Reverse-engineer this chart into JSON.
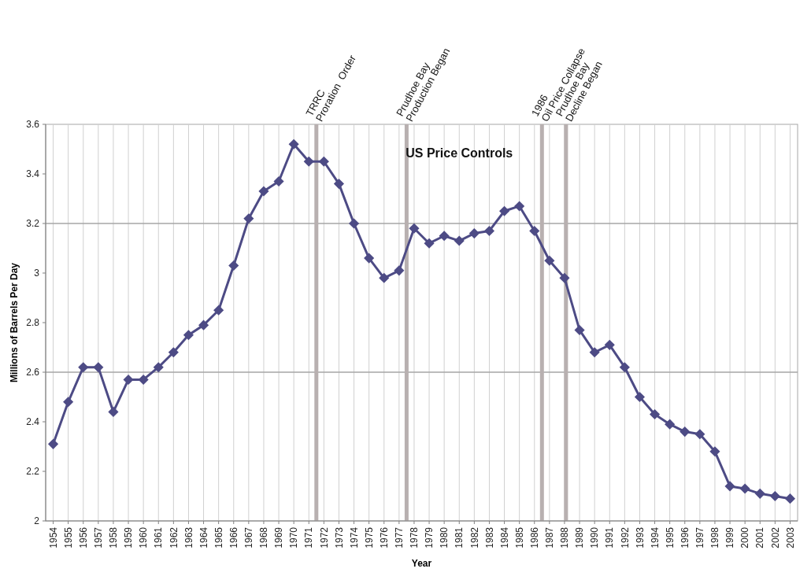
{
  "chart_data": {
    "type": "line",
    "xlabel": "Year",
    "ylabel": "Millions of Barrels Per Day",
    "x": [
      1954,
      1955,
      1956,
      1957,
      1958,
      1959,
      1960,
      1961,
      1962,
      1963,
      1964,
      1965,
      1966,
      1967,
      1968,
      1969,
      1970,
      1971,
      1972,
      1973,
      1974,
      1975,
      1976,
      1977,
      1978,
      1979,
      1980,
      1981,
      1982,
      1983,
      1984,
      1985,
      1986,
      1987,
      1988,
      1989,
      1990,
      1991,
      1992,
      1993,
      1994,
      1995,
      1996,
      1997,
      1998,
      1999,
      2000,
      2001,
      2002,
      2003
    ],
    "series": [
      {
        "color": "#4d4b85",
        "values": [
          2.31,
          2.48,
          2.62,
          2.62,
          2.44,
          2.57,
          2.57,
          2.62,
          2.68,
          2.75,
          2.79,
          2.85,
          3.03,
          3.22,
          3.33,
          3.37,
          3.52,
          3.45,
          3.45,
          3.36,
          3.2,
          3.06,
          2.98,
          3.01,
          3.18,
          3.12,
          3.15,
          3.13,
          3.16,
          3.17,
          3.25,
          3.27,
          3.17,
          3.05,
          2.98,
          2.77,
          2.68,
          2.71,
          2.62,
          2.5,
          2.43,
          2.39,
          2.36,
          2.35,
          2.28,
          2.14,
          2.13,
          2.11,
          2.1,
          2.09
        ]
      }
    ],
    "xlim": [
      1953.5,
      2003.5
    ],
    "xticks": [
      1954,
      1955,
      1956,
      1957,
      1958,
      1959,
      1960,
      1961,
      1962,
      1963,
      1964,
      1965,
      1966,
      1967,
      1968,
      1969,
      1970,
      1971,
      1972,
      1973,
      1974,
      1975,
      1976,
      1977,
      1978,
      1979,
      1980,
      1981,
      1982,
      1983,
      1984,
      1985,
      1986,
      1987,
      1988,
      1989,
      1990,
      1991,
      1992,
      1993,
      1994,
      1995,
      1996,
      1997,
      1998,
      1999,
      2000,
      2001,
      2002,
      2003
    ],
    "ylim": [
      2,
      3.6
    ],
    "yticks": [
      2,
      2.2,
      2.4,
      2.6,
      2.8,
      3,
      3.2,
      3.4,
      3.6
    ],
    "grid": "x",
    "marker": "diamond",
    "line_style": "solid",
    "ref_lines": [
      {
        "axis": "y",
        "value": 2.6,
        "label": null,
        "color": "#a6a6a6"
      },
      {
        "axis": "y",
        "value": 3.2,
        "label": null,
        "color": "#a6a6a6"
      },
      {
        "axis": "x",
        "value": 1971.5,
        "label": "TRRC\nProration  Order",
        "color": "#b8b0b0"
      },
      {
        "axis": "x",
        "value": 1977.5,
        "label": "Prudhoe Bay\nProduction Began",
        "color": "#b8b0b0"
      },
      {
        "axis": "x",
        "value": 1986.5,
        "label": "1986\nOil Price Collapse",
        "color": "#b8b0b0"
      },
      {
        "axis": "x",
        "value": 1988.1,
        "label": "Prudhoe Bay\nDecline Began",
        "color": "#b8b0b0"
      }
    ],
    "annotations": [
      "US Price Controls"
    ]
  }
}
